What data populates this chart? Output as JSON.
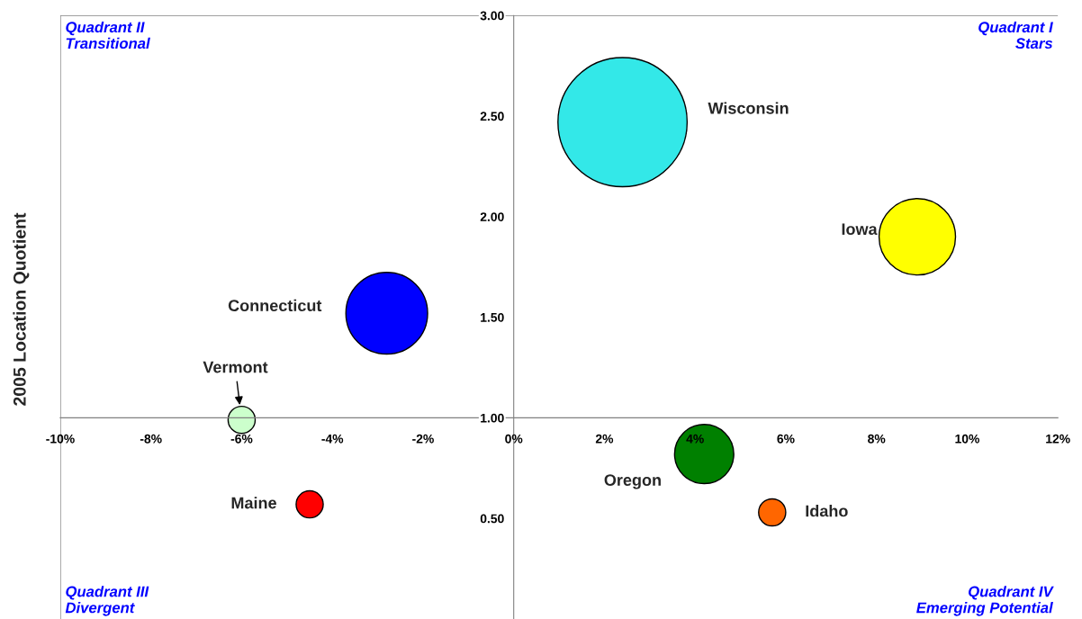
{
  "chart_data": {
    "type": "bubble",
    "ylabel": "2005 Location Quotient",
    "xlim": [
      -10,
      12
    ],
    "xticks": [
      {
        "value": -10,
        "label": "-10%"
      },
      {
        "value": -8,
        "label": "-8%"
      },
      {
        "value": -6,
        "label": "-6%"
      },
      {
        "value": -4,
        "label": "-4%"
      },
      {
        "value": -2,
        "label": "-2%"
      },
      {
        "value": 0,
        "label": "0%"
      },
      {
        "value": 2,
        "label": "2%"
      },
      {
        "value": 4,
        "label": "4%"
      },
      {
        "value": 6,
        "label": "6%"
      },
      {
        "value": 8,
        "label": "8%"
      },
      {
        "value": 10,
        "label": "10%"
      },
      {
        "value": 12,
        "label": "12%"
      }
    ],
    "ylim": [
      0,
      3
    ],
    "yticks": [
      {
        "value": 0.5,
        "label": "0.50"
      },
      {
        "value": 1,
        "label": "1.00"
      },
      {
        "value": 1.5,
        "label": "1.50"
      },
      {
        "value": 2,
        "label": "2.00"
      },
      {
        "value": 2.5,
        "label": "2.50"
      },
      {
        "value": 3,
        "label": "3.00"
      }
    ],
    "series": [
      {
        "name": "Wisconsin",
        "color": "#33e8e8",
        "x": [
          2.4
        ],
        "values": [
          2.47
        ],
        "sizes": [
          1
        ]
      },
      {
        "name": "Iowa",
        "color": "#ffff00",
        "x": [
          8.9
        ],
        "values": [
          1.9
        ],
        "sizes": [
          0.35
        ]
      },
      {
        "name": "Connecticut",
        "color": "#0000ff",
        "x": [
          -2.8
        ],
        "values": [
          1.52
        ],
        "sizes": [
          0.4
        ]
      },
      {
        "name": "Vermont",
        "color": "#ccffcc",
        "x": [
          -6.0
        ],
        "values": [
          0.99
        ],
        "sizes": [
          0.044
        ]
      },
      {
        "name": "Maine",
        "color": "#ff0000",
        "x": [
          -4.5
        ],
        "values": [
          0.57
        ],
        "sizes": [
          0.044
        ]
      },
      {
        "name": "Oregon",
        "color": "#008000",
        "x": [
          4.2
        ],
        "values": [
          0.82
        ],
        "sizes": [
          0.21
        ]
      },
      {
        "name": "Idaho",
        "color": "#ff6600",
        "x": [
          5.7
        ],
        "values": [
          0.53
        ],
        "sizes": [
          0.044
        ]
      }
    ],
    "annotations": [
      "Quadrant II\nTransitional",
      "Quadrant I\nStars",
      "Quadrant III\nDivergent",
      "Quadrant IV\nEmerging Potential"
    ],
    "legend": false,
    "grid": false
  }
}
